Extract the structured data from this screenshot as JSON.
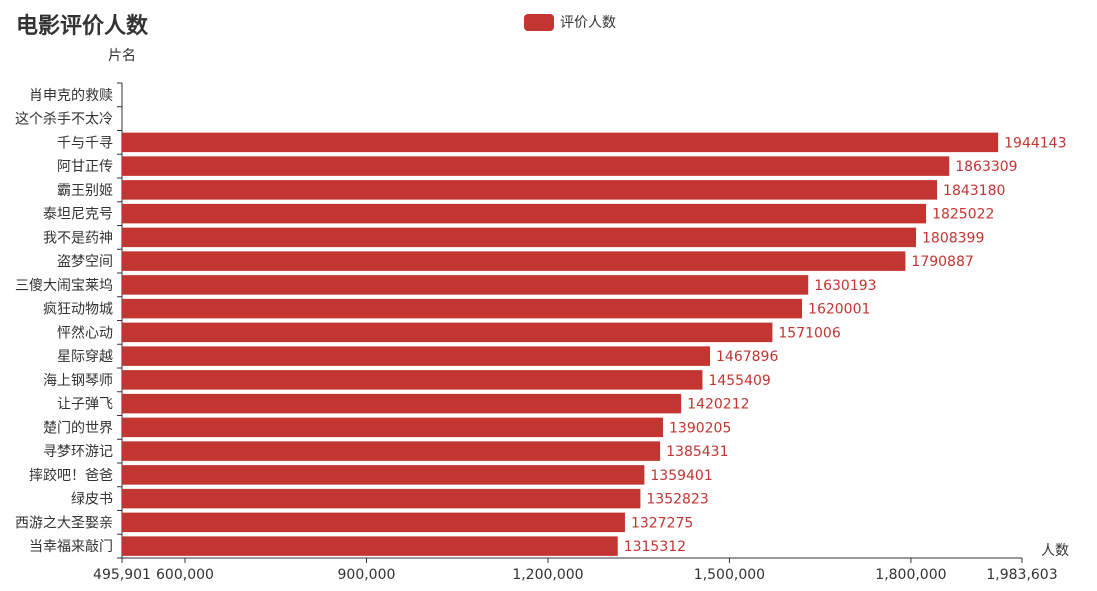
{
  "chart_data": {
    "type": "bar",
    "orientation": "horizontal",
    "title": "电影评价人数",
    "xlabel": "人数",
    "ylabel": "片名",
    "legend": {
      "position": "top-center"
    },
    "xlim": [
      495901,
      1983603
    ],
    "xtick_values": [
      495901,
      600000,
      900000,
      1200000,
      1500000,
      1800000,
      1983603
    ],
    "xtick_labels": [
      "495,901",
      "600,000",
      "900,000",
      "1,200,000",
      "1,500,000",
      "1,800,000",
      "1,983,603"
    ],
    "categories": [
      "肖申克的救赎",
      "这个杀手不太冷",
      "千与千寻",
      "阿甘正传",
      "霸王别姬",
      "泰坦尼克号",
      "我不是药神",
      "盗梦空间",
      "三傻大闹宝莱坞",
      "疯狂动物城",
      "怦然心动",
      "星际穿越",
      "海上钢琴师",
      "让子弹飞",
      "楚门的世界",
      "寻梦环游记",
      "摔跤吧！爸爸",
      "绿皮书",
      "西游之大圣娶亲",
      "当幸福来敲门"
    ],
    "series": [
      {
        "name": "评价人数",
        "color": "#c23531",
        "values": [
          null,
          null,
          1944143,
          1863309,
          1843180,
          1825022,
          1808399,
          1790887,
          1630193,
          1620001,
          1571006,
          1467896,
          1455409,
          1420212,
          1390205,
          1385431,
          1359401,
          1352823,
          1327275,
          1315312
        ],
        "labels": [
          "",
          "",
          "1944143",
          "1863309",
          "1843180",
          "1825022",
          "1808399",
          "1790887",
          "1630193",
          "1620001",
          "1571006",
          "1467896",
          "1455409",
          "1420212",
          "1390205",
          "1385431",
          "1359401",
          "1352823",
          "1327275",
          "1315312"
        ]
      }
    ]
  }
}
